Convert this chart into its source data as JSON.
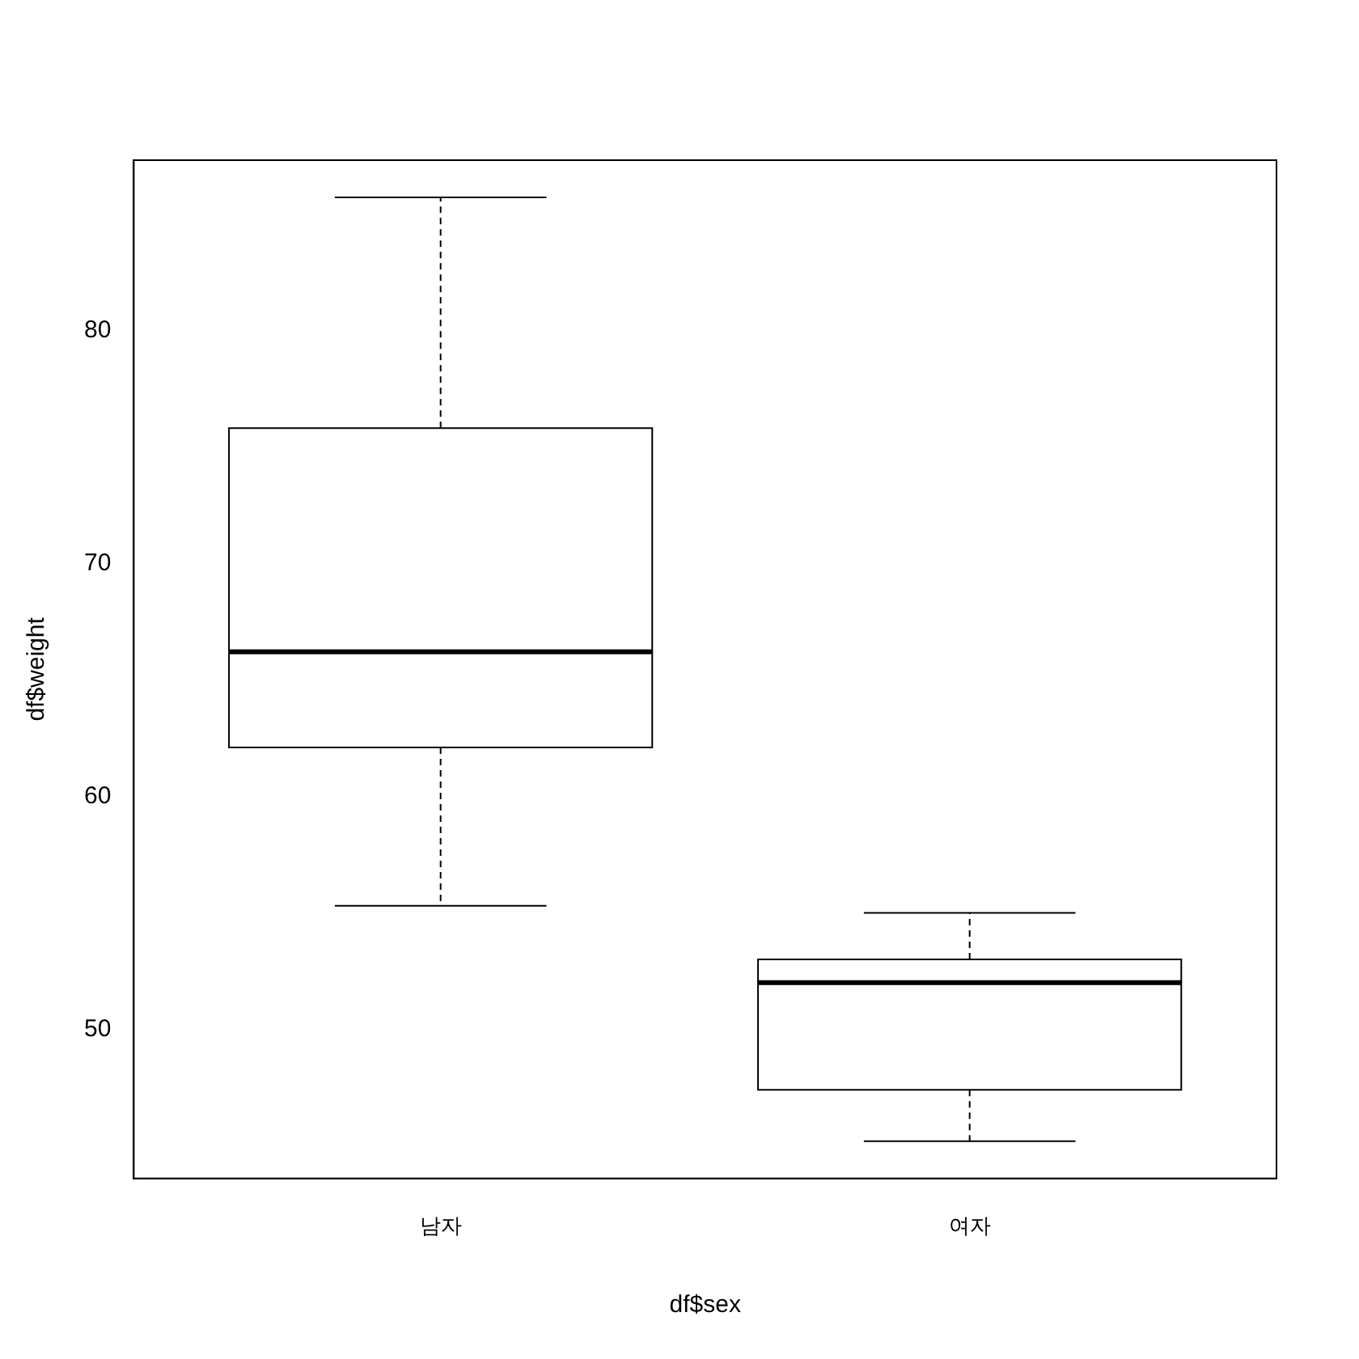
{
  "chart_data": {
    "type": "box",
    "xlabel": "df$sex",
    "ylabel": "df$weight",
    "categories": [
      "남자",
      "여자"
    ],
    "boxes": [
      {
        "low": 55.3,
        "q1": 62.1,
        "median": 66.2,
        "q3": 75.8,
        "high": 85.7
      },
      {
        "low": 45.2,
        "q1": 47.4,
        "median": 52.0,
        "q3": 53.0,
        "high": 55.0
      }
    ],
    "ylim": [
      43.6,
      87.3
    ],
    "yticks": [
      50,
      60,
      70,
      80
    ]
  }
}
